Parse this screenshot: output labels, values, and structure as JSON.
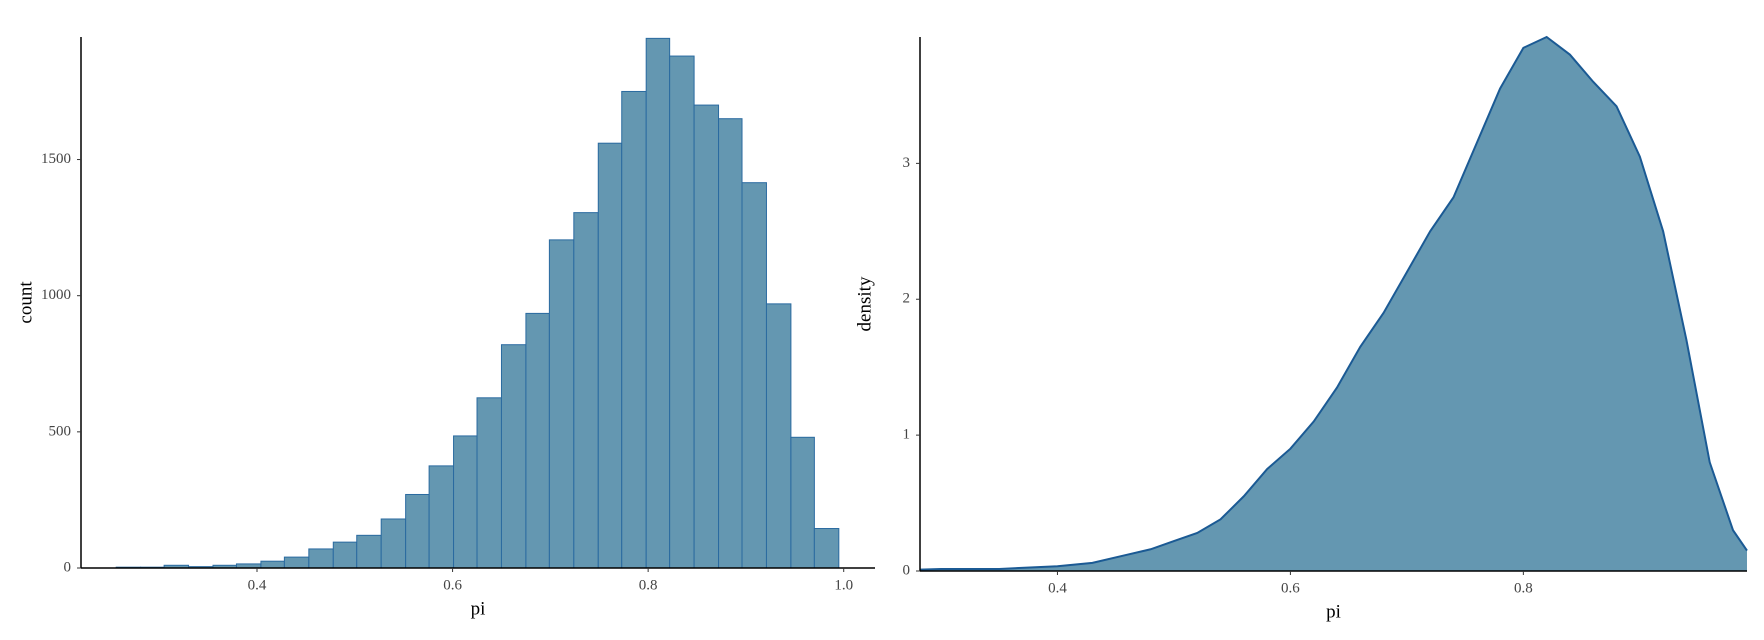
{
  "chart_data": [
    {
      "type": "histogram",
      "x_label": "pi",
      "y_label": "count",
      "bins": [
        0.256,
        0.281,
        0.305,
        0.33,
        0.355,
        0.379,
        0.404,
        0.428,
        0.453,
        0.478,
        0.502,
        0.527,
        0.552,
        0.576,
        0.601,
        0.625,
        0.65,
        0.675,
        0.699,
        0.724,
        0.749,
        0.773,
        0.798,
        0.822,
        0.847,
        0.872,
        0.896,
        0.921,
        0.946,
        0.97,
        0.995
      ],
      "values": [
        3,
        3,
        10,
        5,
        10,
        15,
        25,
        40,
        70,
        95,
        120,
        180,
        270,
        375,
        485,
        625,
        820,
        935,
        1205,
        1305,
        1560,
        1750,
        1945,
        1880,
        1700,
        1650,
        1415,
        970,
        480,
        145
      ],
      "color": "#6497b1",
      "edge_color": "#2a6aa0",
      "xlim": [
        0.22,
        1.032
      ],
      "ylim": [
        0,
        1950
      ],
      "xticks": [
        0.4,
        0.6,
        0.8,
        {
          "value": 1,
          "label": "1.0"
        }
      ],
      "yticks": [
        0,
        500,
        1000,
        1500
      ]
    },
    {
      "type": "density",
      "x_label": "pi",
      "y_label": "density",
      "x": [
        0.282,
        0.3,
        0.35,
        0.4,
        0.43,
        0.46,
        0.48,
        0.5,
        0.52,
        0.54,
        0.56,
        0.58,
        0.6,
        0.62,
        0.64,
        0.66,
        0.68,
        0.7,
        0.72,
        0.74,
        0.76,
        0.78,
        0.8,
        0.82,
        0.84,
        0.86,
        0.88,
        0.9,
        0.92,
        0.94,
        0.96,
        0.98,
        0.992
      ],
      "values": [
        0.01,
        0.015,
        0.015,
        0.035,
        0.06,
        0.12,
        0.16,
        0.22,
        0.28,
        0.38,
        0.55,
        0.75,
        0.9,
        1.1,
        1.35,
        1.65,
        1.9,
        2.2,
        2.5,
        2.75,
        3.15,
        3.55,
        3.85,
        3.93,
        3.8,
        3.6,
        3.42,
        3.05,
        2.5,
        1.7,
        0.8,
        0.3,
        0.15
      ],
      "color": "#6497b1",
      "edge_color": "#1b5a94",
      "xlim": [
        0.282,
        0.992
      ],
      "ylim": [
        0,
        3.93
      ],
      "xticks": [
        0.4,
        0.6,
        0.8
      ],
      "yticks": [
        0,
        1,
        2,
        3
      ]
    }
  ]
}
